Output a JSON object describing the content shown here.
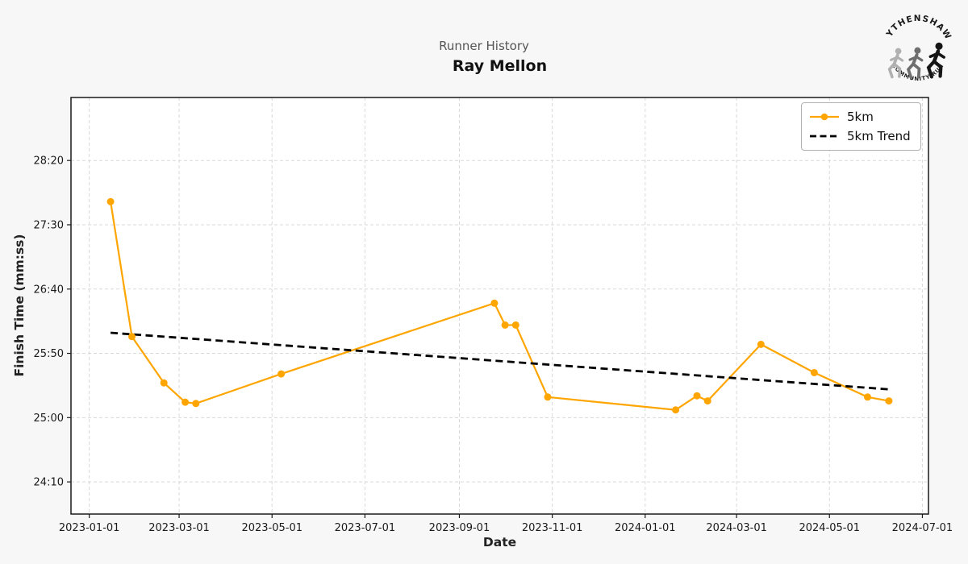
{
  "header": {
    "suptitle": "Runner History",
    "title": "Ray Mellon"
  },
  "logo": {
    "top_text": "WYTHENSHAWE",
    "bottom_text": "COMMUNITY RUN"
  },
  "chart_data": {
    "type": "line",
    "title": "Ray Mellon",
    "subtitle": "Runner History",
    "xlabel": "Date",
    "ylabel": "Finish Time (mm:ss)",
    "x_axis": {
      "min_date": "2022-12-20",
      "max_date": "2024-07-05",
      "ticks": [
        "2023-01-01",
        "2023-03-01",
        "2023-05-01",
        "2023-07-01",
        "2023-09-01",
        "2023-11-01",
        "2024-01-01",
        "2024-03-01",
        "2024-05-01",
        "2024-07-01"
      ],
      "grid": true
    },
    "y_axis": {
      "min": "23:45",
      "max": "29:09",
      "ticks": [
        "24:10",
        "25:00",
        "25:50",
        "26:40",
        "27:30",
        "28:20"
      ],
      "grid": true
    },
    "series": [
      {
        "name": "5km",
        "color": "#FFA500",
        "marker": "circle",
        "points": [
          {
            "date": "2023-01-15",
            "time": "27:48"
          },
          {
            "date": "2023-01-29",
            "time": "26:03"
          },
          {
            "date": "2023-02-19",
            "time": "25:27"
          },
          {
            "date": "2023-03-05",
            "time": "25:12"
          },
          {
            "date": "2023-03-12",
            "time": "25:11"
          },
          {
            "date": "2023-05-07",
            "time": "25:34"
          },
          {
            "date": "2023-09-24",
            "time": "26:29"
          },
          {
            "date": "2023-10-01",
            "time": "26:12"
          },
          {
            "date": "2023-10-08",
            "time": "26:12"
          },
          {
            "date": "2023-10-29",
            "time": "25:16"
          },
          {
            "date": "2024-01-21",
            "time": "25:06"
          },
          {
            "date": "2024-02-04",
            "time": "25:17"
          },
          {
            "date": "2024-02-11",
            "time": "25:13"
          },
          {
            "date": "2024-03-17",
            "time": "25:57"
          },
          {
            "date": "2024-04-21",
            "time": "25:35"
          },
          {
            "date": "2024-05-26",
            "time": "25:16"
          },
          {
            "date": "2024-06-09",
            "time": "25:13"
          }
        ]
      }
    ],
    "trend": {
      "name": "5km Trend",
      "color": "#000000",
      "style": "dashed",
      "start": {
        "date": "2023-01-15",
        "time": "26:06"
      },
      "end": {
        "date": "2024-06-09",
        "time": "25:22"
      }
    },
    "legend": {
      "position": "upper right",
      "items": [
        {
          "label": "5km"
        },
        {
          "label": "5km Trend"
        }
      ]
    },
    "colors": {
      "figure_bg": "#f7f7f7",
      "plot_bg": "#ffffff",
      "grid": "#d9d9d9",
      "spine": "#1a1a1a",
      "tick_label": "#1a1a1a"
    }
  }
}
